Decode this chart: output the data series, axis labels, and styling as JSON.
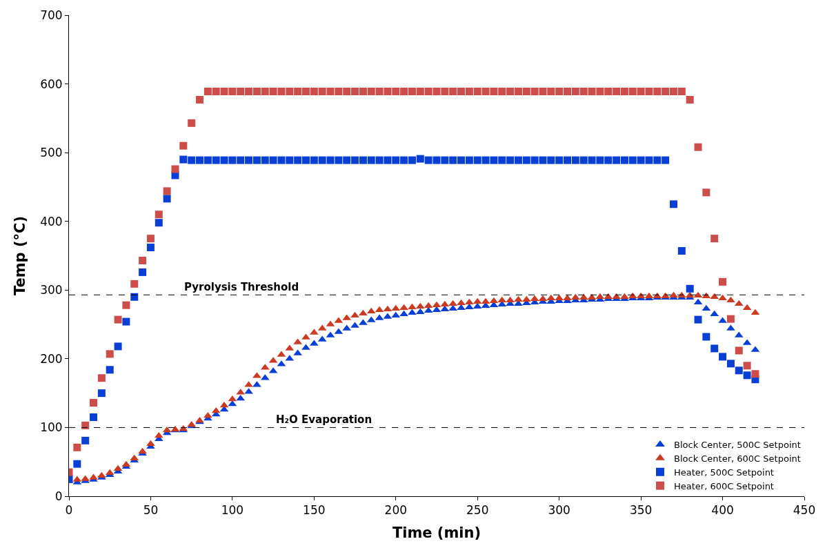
{
  "chart_data": {
    "type": "scatter",
    "xlabel": "Time (min)",
    "ylabel": "Temp (°C)",
    "x": [
      0,
      5,
      10,
      15,
      20,
      25,
      30,
      35,
      40,
      45,
      50,
      55,
      60,
      65,
      70,
      75,
      80,
      85,
      90,
      95,
      100,
      105,
      110,
      115,
      120,
      125,
      130,
      135,
      140,
      145,
      150,
      155,
      160,
      165,
      170,
      175,
      180,
      185,
      190,
      195,
      200,
      205,
      210,
      215,
      220,
      225,
      230,
      235,
      240,
      245,
      250,
      255,
      260,
      265,
      270,
      275,
      280,
      285,
      290,
      295,
      300,
      305,
      310,
      315,
      320,
      325,
      330,
      335,
      340,
      345,
      350,
      355,
      360,
      365,
      370,
      375,
      380,
      385,
      390,
      395,
      400,
      405,
      410,
      415,
      420
    ],
    "series": [
      {
        "name": "Block Center, 500C Setpoint",
        "color": "#0a3fd6",
        "marker": "triangle",
        "values": [
          22,
          20,
          22,
          24,
          27,
          31,
          36,
          43,
          52,
          62,
          72,
          83,
          92,
          96,
          96,
          102,
          108,
          113,
          119,
          126,
          134,
          142,
          152,
          162,
          172,
          182,
          192,
          200,
          208,
          216,
          222,
          228,
          234,
          239,
          244,
          248,
          252,
          256,
          259,
          261,
          263,
          265,
          267,
          268,
          270,
          271,
          272,
          273,
          274,
          275,
          276,
          277,
          278,
          279,
          280,
          280,
          281,
          282,
          283,
          283,
          284,
          284,
          285,
          285,
          286,
          286,
          287,
          287,
          287,
          288,
          288,
          288,
          289,
          289,
          289,
          289,
          289,
          282,
          273,
          265,
          255,
          244,
          234,
          223,
          213
        ]
      },
      {
        "name": "Block Center, 600C Setpoint",
        "color": "#cc3a22",
        "marker": "triangle",
        "values": [
          null,
          24,
          25,
          27,
          30,
          34,
          40,
          46,
          55,
          65,
          76,
          88,
          96,
          97,
          98,
          104,
          110,
          117,
          124,
          132,
          141,
          151,
          162,
          175,
          187,
          197,
          206,
          215,
          224,
          231,
          238,
          244,
          250,
          255,
          259,
          263,
          266,
          269,
          271,
          272,
          273,
          274,
          275,
          276,
          277,
          278,
          279,
          280,
          281,
          282,
          283,
          283,
          284,
          285,
          285,
          286,
          286,
          287,
          287,
          288,
          288,
          288,
          289,
          289,
          289,
          290,
          290,
          290,
          290,
          291,
          291,
          291,
          291,
          291,
          292,
          292,
          292,
          292,
          291,
          290,
          288,
          285,
          280,
          274,
          267
        ]
      },
      {
        "name": "Heater, 500C Setpoint",
        "color": "#0a3fd6",
        "marker": "square",
        "values": [
          25,
          47,
          81,
          115,
          150,
          184,
          218,
          254,
          290,
          326,
          362,
          398,
          433,
          467,
          490,
          489,
          489,
          489,
          489,
          489,
          489,
          489,
          489,
          489,
          489,
          489,
          489,
          489,
          489,
          489,
          489,
          489,
          489,
          489,
          489,
          489,
          489,
          489,
          489,
          489,
          489,
          489,
          489,
          491,
          489,
          489,
          489,
          489,
          489,
          489,
          489,
          489,
          489,
          489,
          489,
          489,
          489,
          489,
          489,
          489,
          489,
          489,
          489,
          489,
          489,
          489,
          489,
          489,
          489,
          489,
          489,
          489,
          489,
          489,
          425,
          357,
          302,
          257,
          232,
          215,
          203,
          193,
          183,
          176,
          170
        ]
      },
      {
        "name": "Heater, 600C Setpoint",
        "color": "#cc4d4a",
        "marker": "square",
        "values": [
          35,
          71,
          103,
          136,
          172,
          207,
          257,
          278,
          309,
          343,
          375,
          410,
          444,
          476,
          510,
          543,
          577,
          589,
          589,
          589,
          589,
          589,
          589,
          589,
          589,
          589,
          589,
          589,
          589,
          589,
          589,
          589,
          589,
          589,
          589,
          589,
          589,
          589,
          589,
          589,
          589,
          589,
          589,
          589,
          589,
          589,
          589,
          589,
          589,
          589,
          589,
          589,
          589,
          589,
          589,
          589,
          589,
          589,
          589,
          589,
          589,
          589,
          589,
          589,
          589,
          589,
          589,
          589,
          589,
          589,
          589,
          589,
          589,
          589,
          589,
          589,
          577,
          508,
          442,
          375,
          312,
          258,
          212,
          190,
          178
        ]
      }
    ],
    "xlim": [
      0,
      450
    ],
    "xticks": [
      0,
      50,
      100,
      150,
      200,
      250,
      300,
      350,
      400,
      450
    ],
    "ylim": [
      0,
      700
    ],
    "yticks": [
      0,
      100,
      200,
      300,
      400,
      500,
      600,
      700
    ],
    "ref_lines": [
      {
        "axis": "y",
        "value": 293,
        "label": "Pyrolysis Threshold",
        "line_style": "dashed"
      },
      {
        "axis": "y",
        "value": 100,
        "label": "H₂O Evaporation",
        "line_style": "dashed"
      }
    ],
    "legend": "bottom right"
  }
}
